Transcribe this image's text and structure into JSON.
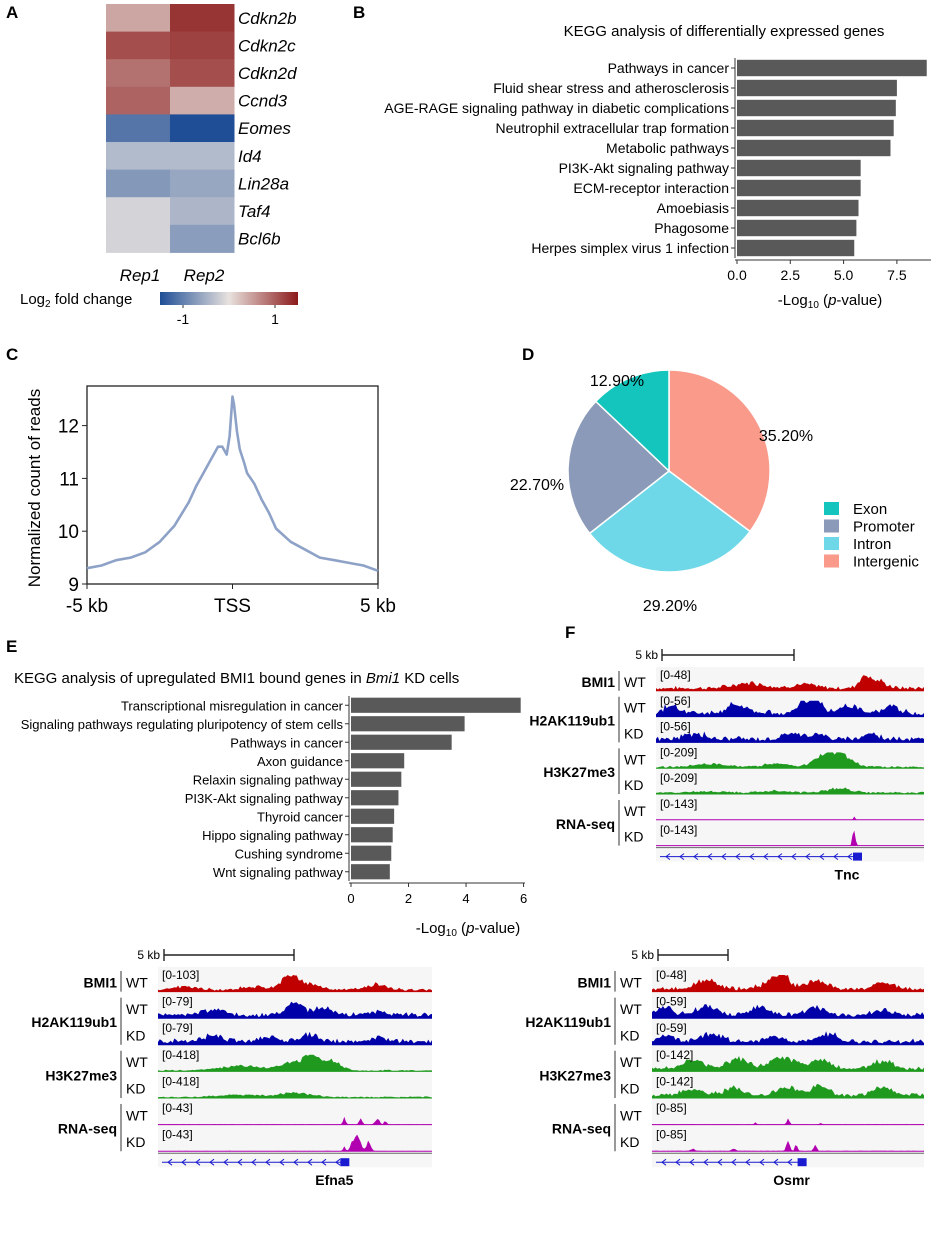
{
  "colors": {
    "bar": "#595959",
    "heat_low": "#1f4e96",
    "heat_mid": "#e8e2de",
    "heat_high": "#8b1a1a",
    "bmi1": "#c00000",
    "h2a": "#0000a8",
    "h3k": "#1f9a1f",
    "rna": "#b000b0",
    "tss_line": "#8ea2c8",
    "gene": "#1a1ad0",
    "pie_exon": "#13c5bd",
    "pie_promoter": "#8a9ab8",
    "pie_intron": "#6fd8e8",
    "pie_intergenic": "#f99a8a"
  },
  "panels": {
    "a": "A",
    "b": "B",
    "c": "C",
    "d": "D",
    "e": "E",
    "f": "F"
  },
  "chart_data": [
    {
      "panel": "A",
      "type": "heatmap",
      "rows": [
        "Cdkn2b",
        "Cdkn2c",
        "Cdkn2d",
        "Ccnd3",
        "Eomes",
        "Id4",
        "Lin28a",
        "Taf4",
        "Bcl6b"
      ],
      "columns": [
        "Rep1",
        "Rep2"
      ],
      "values": [
        [
          0.45,
          1.3
        ],
        [
          1.1,
          1.2
        ],
        [
          0.85,
          1.1
        ],
        [
          0.95,
          0.4
        ],
        [
          -1.1,
          -1.5
        ],
        [
          -0.4,
          -0.4
        ],
        [
          -0.75,
          -0.6
        ],
        [
          -0.15,
          -0.45
        ],
        [
          -0.15,
          -0.7
        ]
      ],
      "legend_label_pre": "Log",
      "legend_label_sub": "2",
      "legend_label_post": " fold change",
      "legend_ticks": [
        {
          "value": -1,
          "label": "-1"
        },
        {
          "value": 1,
          "label": "1"
        }
      ],
      "legend_range": [
        -1.5,
        1.5
      ]
    },
    {
      "panel": "B",
      "type": "bar",
      "orientation": "horizontal",
      "title": "KEGG analysis of differentially expressed genes",
      "categories": [
        "Pathways in cancer",
        "Fluid shear stress and atherosclerosis",
        "AGE-RAGE signaling pathway in diabetic complications",
        "Neutrophil extracellular trap formation",
        "Metabolic pathways",
        "PI3K-Akt signaling pathway",
        "ECM-receptor interaction",
        "Amoebiasis",
        "Phagosome",
        "Herpes simplex virus 1 infection"
      ],
      "values": [
        8.9,
        7.5,
        7.45,
        7.35,
        7.2,
        5.8,
        5.8,
        5.7,
        5.6,
        5.5
      ],
      "xlim": [
        0,
        9.1
      ],
      "xticks": [
        {
          "value": 0,
          "label": "0.0"
        },
        {
          "value": 2.5,
          "label": "2.5"
        },
        {
          "value": 5,
          "label": "5.0"
        },
        {
          "value": 7.5,
          "label": "7.5"
        }
      ],
      "xlabel_pre": "-Log",
      "xlabel_sub": "10",
      "xlabel_mid": " (",
      "xlabel_italic": "p",
      "xlabel_post": "-value)"
    },
    {
      "panel": "C",
      "type": "line",
      "xlabel_ticks": [
        {
          "value": -5,
          "label": "-5 kb"
        },
        {
          "value": 0,
          "label": "TSS"
        },
        {
          "value": 5,
          "label": "5 kb"
        }
      ],
      "ylabel": "Normalized count of reads",
      "yticks": [
        9,
        10,
        11,
        12
      ],
      "xlim": [
        -5,
        5
      ],
      "ylim": [
        9,
        12.75
      ],
      "x": [
        -5,
        -4.5,
        -4,
        -3.5,
        -3,
        -2.5,
        -2,
        -1.5,
        -1.25,
        -1,
        -0.75,
        -0.5,
        -0.35,
        -0.2,
        -0.1,
        0,
        0.05,
        0.15,
        0.25,
        0.4,
        0.5,
        0.75,
        1,
        1.25,
        1.5,
        2,
        2.5,
        3,
        3.5,
        4,
        4.5,
        5
      ],
      "y": [
        9.3,
        9.35,
        9.45,
        9.5,
        9.6,
        9.8,
        10.1,
        10.55,
        10.85,
        11.1,
        11.35,
        11.6,
        11.6,
        11.45,
        11.8,
        12.55,
        12.4,
        11.9,
        11.55,
        11.3,
        11.1,
        10.9,
        10.6,
        10.35,
        10.05,
        9.8,
        9.65,
        9.5,
        9.45,
        9.4,
        9.35,
        9.25
      ]
    },
    {
      "panel": "D",
      "type": "pie",
      "slices": [
        {
          "label": "Intergenic",
          "value": 35.2,
          "text": "35.20%",
          "color": "#f99a8a"
        },
        {
          "label": "Intron",
          "value": 29.2,
          "text": "29.20%",
          "color": "#6fd8e8"
        },
        {
          "label": "Promoter",
          "value": 22.7,
          "text": "22.70%",
          "color": "#8a9ab8"
        },
        {
          "label": "Exon",
          "value": 12.9,
          "text": "12.90%",
          "color": "#13c5bd"
        }
      ],
      "legend": [
        "Exon",
        "Promoter",
        "Intron",
        "Intergenic"
      ]
    },
    {
      "panel": "E",
      "type": "bar",
      "orientation": "horizontal",
      "title_pre": "KEGG analysis of upregulated BMI1 bound genes in ",
      "title_italic": "Bmi1",
      "title_post": " KD cells",
      "categories": [
        "Transcriptional misregulation in cancer",
        "Signaling pathways regulating pluripotency of stem cells",
        "Pathways in cancer",
        "Axon guidance",
        "Relaxin signaling pathway",
        "PI3K-Akt signaling pathway",
        "Thyroid cancer",
        "Hippo signaling pathway",
        "Cushing syndrome",
        "Wnt signaling pathway"
      ],
      "values": [
        5.9,
        3.95,
        3.5,
        1.85,
        1.75,
        1.65,
        1.5,
        1.45,
        1.4,
        1.35
      ],
      "xlim": [
        0,
        6.05
      ],
      "xticks": [
        {
          "value": 0,
          "label": "0"
        },
        {
          "value": 2,
          "label": "2"
        },
        {
          "value": 4,
          "label": "4"
        },
        {
          "value": 6,
          "label": "6"
        }
      ],
      "xlabel_pre": "-Log",
      "xlabel_sub": "10",
      "xlabel_mid": " (",
      "xlabel_italic": "p",
      "xlabel_post": "-value)"
    }
  ],
  "browser": {
    "scale_label": "5 kb",
    "sample_wt": "WT",
    "sample_kd": "KD",
    "mark_labels": {
      "bmi1": "BMI1",
      "h2a": "H2AK119ub1",
      "h3k": "H3K27me3",
      "rna": "RNA-seq"
    },
    "loci": [
      {
        "gene": "Tnc",
        "scales": {
          "bmi1": "[0-48]",
          "h2a_wt": "[0-56]",
          "h2a_kd": "[0-56]",
          "h3k_wt": "[0-209]",
          "h3k_kd": "[0-209]",
          "rna_wt": "[0-143]",
          "rna_kd": "[0-143]"
        }
      },
      {
        "gene": "Efna5",
        "scales": {
          "bmi1": "[0-103]",
          "h2a_wt": "[0-79]",
          "h2a_kd": "[0-79]",
          "h3k_wt": "[0-418]",
          "h3k_kd": "[0-418]",
          "rna_wt": "[0-43]",
          "rna_kd": "[0-43]"
        }
      },
      {
        "gene": "Osmr",
        "scales": {
          "bmi1": "[0-48]",
          "h2a_wt": "[0-59]",
          "h2a_kd": "[0-59]",
          "h3k_wt": "[0-142]",
          "h3k_kd": "[0-142]",
          "rna_wt": "[0-85]",
          "rna_kd": "[0-85]"
        }
      }
    ]
  }
}
